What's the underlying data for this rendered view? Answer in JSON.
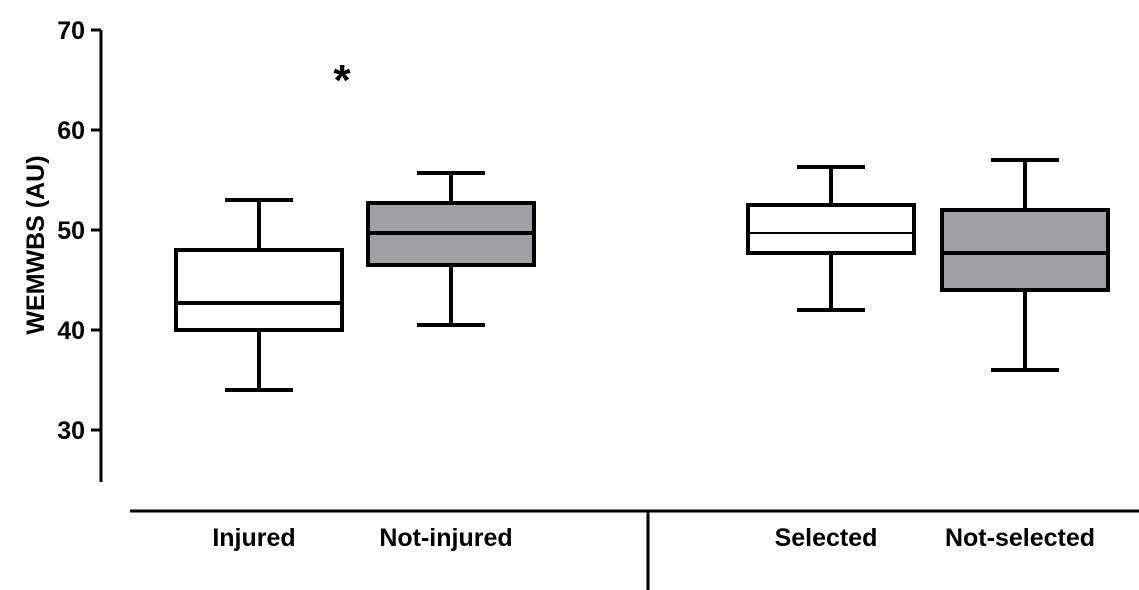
{
  "chart_data": {
    "type": "box",
    "ylabel": "WEMWBS (AU)",
    "xlabel": "",
    "title": "",
    "ylim": [
      25,
      70
    ],
    "yticks": [
      30,
      40,
      50,
      60,
      70
    ],
    "grid": false,
    "boxes": [
      {
        "category": "Injured",
        "min": 34,
        "q1": 40,
        "median": 42.7,
        "q3": 48,
        "max": 53,
        "fill": "#ffffff",
        "annotation": "*"
      },
      {
        "category": "Not-injured",
        "min": 40.5,
        "q1": 46.5,
        "median": 49.7,
        "q3": 52.7,
        "max": 55.7,
        "fill": "#a0a0a4",
        "annotation": ""
      },
      {
        "category": "Selected",
        "min": 42,
        "q1": 47.7,
        "median": 49.7,
        "q3": 52.5,
        "max": 56.3,
        "fill": "#ffffff",
        "annotation": ""
      },
      {
        "category": "Not-selected",
        "min": 36,
        "q1": 44,
        "median": 47.7,
        "q3": 52,
        "max": 57,
        "fill": "#a0a0a4",
        "annotation": ""
      }
    ],
    "colors": {
      "axis": "#000000",
      "grey_fill": "#a0a0a4",
      "white_fill": "#ffffff"
    }
  }
}
